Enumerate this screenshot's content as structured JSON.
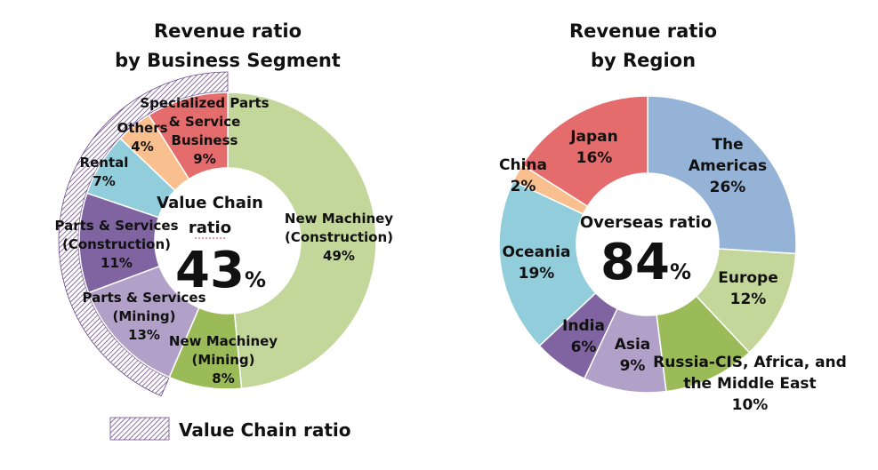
{
  "chart_data": [
    {
      "type": "pie",
      "title": "Revenue ratio by Business Segment",
      "title_lines": [
        "Revenue ratio",
        "by Business Segment"
      ],
      "center_label": "Value Chain ratio",
      "center_label_lines": [
        "Value Chain",
        "ratio"
      ],
      "center_value": "43",
      "center_unit": "%",
      "slices": [
        {
          "name": "New Machiney (Construction)",
          "lines": [
            "New Machiney",
            "(Construction)",
            "49%"
          ],
          "value": 49,
          "color": "#c4d79b"
        },
        {
          "name": "New Machiney (Mining)",
          "lines": [
            "New Machiney",
            "(Mining)",
            "8%"
          ],
          "value": 8,
          "color": "#9bbb59"
        },
        {
          "name": "Parts & Services (Mining)",
          "lines": [
            "Parts & Services",
            "(Mining)",
            "13%"
          ],
          "value": 13,
          "color": "#b1a0c7"
        },
        {
          "name": "Parts & Services (Construction)",
          "lines": [
            "Parts & Services",
            "(Construction)",
            "11%"
          ],
          "value": 11,
          "color": "#8064a2"
        },
        {
          "name": "Rental",
          "lines": [
            "Rental",
            "7%"
          ],
          "value": 7,
          "color": "#92cddc"
        },
        {
          "name": "Others",
          "lines": [
            "Others",
            "4%"
          ],
          "value": 4,
          "color": "#fabf8f"
        },
        {
          "name": "Specialized Parts & Service Business",
          "lines": [
            "Specialized Parts",
            "& Service",
            "Business",
            "9%"
          ],
          "value": 9,
          "color": "#e46c6c"
        }
      ],
      "legend": {
        "label": "Value Chain ratio",
        "placement": "bottom-left"
      }
    },
    {
      "type": "pie",
      "title": "Revenue ratio by Region",
      "title_lines": [
        "Revenue ratio",
        "by Region"
      ],
      "center_label": "Overseas ratio",
      "center_value": "84",
      "center_unit": "%",
      "slices": [
        {
          "name": "The Americas",
          "lines": [
            "The",
            "Americas",
            "26%"
          ],
          "value": 26,
          "color": "#95b3d7"
        },
        {
          "name": "Europe",
          "lines": [
            "Europe",
            "12%"
          ],
          "value": 12,
          "color": "#c4d79b"
        },
        {
          "name": "Russia-CIS, Africa, and the Middle East",
          "lines": [
            "Russia-CIS, Africa, and",
            "the Middle East",
            "10%"
          ],
          "value": 10,
          "color": "#9bbb59"
        },
        {
          "name": "Asia",
          "lines": [
            "Asia",
            "9%"
          ],
          "value": 9,
          "color": "#b1a0c7"
        },
        {
          "name": "India",
          "lines": [
            "India",
            "6%"
          ],
          "value": 6,
          "color": "#8064a2"
        },
        {
          "name": "Oceania",
          "lines": [
            "Oceania",
            "19%"
          ],
          "value": 19,
          "color": "#92cddc"
        },
        {
          "name": "China",
          "lines": [
            "China",
            "2%"
          ],
          "value": 2,
          "color": "#fabf8f"
        },
        {
          "name": "Japan",
          "lines": [
            "Japan",
            "16%"
          ],
          "value": 16,
          "color": "#e46c6c"
        }
      ]
    }
  ]
}
